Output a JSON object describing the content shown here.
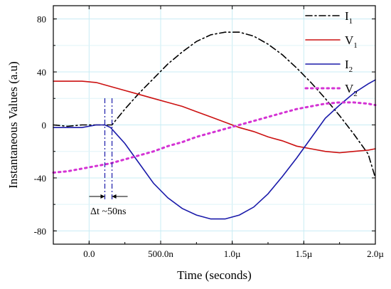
{
  "chart_data": {
    "type": "line",
    "xlabel": "Time (seconds)",
    "ylabel": "Instantaneous Values (a.u)",
    "xlim": [
      -2.5e-07,
      2e-06
    ],
    "ylim": [
      -90,
      90
    ],
    "grid": true,
    "legend_position": "top-right",
    "x_ticks": [
      {
        "value": 0,
        "label": "0.0"
      },
      {
        "value": 5e-07,
        "label": "500.0n"
      },
      {
        "value": 1e-06,
        "label": "1.0µ"
      },
      {
        "value": 1.5e-06,
        "label": "1.5µ"
      },
      {
        "value": 2e-06,
        "label": "2.0µ"
      }
    ],
    "y_ticks": [
      {
        "value": 80,
        "label": "80"
      },
      {
        "value": 40,
        "label": "40"
      },
      {
        "value": 0,
        "label": "0"
      },
      {
        "value": -40,
        "label": "-40"
      },
      {
        "value": -80,
        "label": "-80"
      }
    ],
    "series": [
      {
        "name": "I",
        "subscript": "1",
        "color": "#000000",
        "dash": "dashdot",
        "x": [
          -2.5e-07,
          -1.5e-07,
          -5e-08,
          5e-08,
          1.6e-07,
          2.5e-07,
          3.5e-07,
          4.5e-07,
          5.5e-07,
          6.5e-07,
          7.5e-07,
          8.5e-07,
          9.5e-07,
          1.05e-06,
          1.15e-06,
          1.25e-06,
          1.35e-06,
          1.45e-06,
          1.55e-06,
          1.65e-06,
          1.75e-06,
          1.85e-06,
          1.95e-06,
          2e-06
        ],
        "values": [
          0,
          -1,
          0,
          0,
          0,
          12,
          24,
          35,
          46,
          55,
          63,
          68,
          70,
          70,
          67,
          61,
          53,
          43,
          32,
          20,
          7,
          -7,
          -22,
          -40
        ]
      },
      {
        "name": "V",
        "subscript": "1",
        "color": "#cc1111",
        "dash": "solid",
        "x": [
          -2.5e-07,
          -1.5e-07,
          -5e-08,
          5e-08,
          1.5e-07,
          2.5e-07,
          3.5e-07,
          4.5e-07,
          5.5e-07,
          6.5e-07,
          7.5e-07,
          8.5e-07,
          9.5e-07,
          1.05e-06,
          1.15e-06,
          1.25e-06,
          1.35e-06,
          1.45e-06,
          1.55e-06,
          1.65e-06,
          1.75e-06,
          1.85e-06,
          1.95e-06,
          2e-06
        ],
        "values": [
          33,
          33,
          33,
          32,
          29,
          26,
          23,
          20,
          17,
          14,
          10,
          6,
          2,
          -2,
          -5,
          -9,
          -12,
          -16,
          -18,
          -20,
          -21,
          -20,
          -19,
          -18
        ]
      },
      {
        "name": "I",
        "subscript": "2",
        "color": "#1a1aaa",
        "dash": "solid",
        "x": [
          -2.5e-07,
          -1.5e-07,
          -5e-08,
          5e-08,
          1.1e-07,
          1.5e-07,
          2.5e-07,
          3.5e-07,
          4.5e-07,
          5.5e-07,
          6.5e-07,
          7.5e-07,
          8.5e-07,
          9.5e-07,
          1.05e-06,
          1.15e-06,
          1.25e-06,
          1.35e-06,
          1.45e-06,
          1.55e-06,
          1.65e-06,
          1.75e-06,
          1.85e-06,
          1.95e-06,
          2e-06
        ],
        "values": [
          -2,
          -2,
          -2,
          0,
          0,
          -2,
          -14,
          -29,
          -44,
          -55,
          -63,
          -68,
          -71,
          -71,
          -68,
          -62,
          -52,
          -39,
          -25,
          -10,
          5,
          15,
          24,
          31,
          34
        ]
      },
      {
        "name": "V",
        "subscript": "2",
        "color": "#d433d4",
        "dash": "dotted",
        "x": [
          -2.5e-07,
          -1.5e-07,
          -5e-08,
          5e-08,
          1.5e-07,
          2.5e-07,
          3.5e-07,
          4.5e-07,
          5.5e-07,
          6.5e-07,
          7.5e-07,
          8.5e-07,
          9.5e-07,
          1.05e-06,
          1.15e-06,
          1.25e-06,
          1.35e-06,
          1.45e-06,
          1.55e-06,
          1.65e-06,
          1.75e-06,
          1.85e-06,
          1.95e-06,
          2e-06
        ],
        "values": [
          -36,
          -35,
          -33,
          -31,
          -29,
          -26,
          -23,
          -20,
          -16,
          -13,
          -9,
          -6,
          -3,
          0,
          3,
          6,
          9,
          12,
          14,
          16,
          17,
          17,
          16,
          15
        ]
      }
    ],
    "annotations": [
      {
        "text": "Δt ~50ns",
        "x_start": 1.1e-07,
        "x_end": 1.6e-07
      }
    ]
  }
}
